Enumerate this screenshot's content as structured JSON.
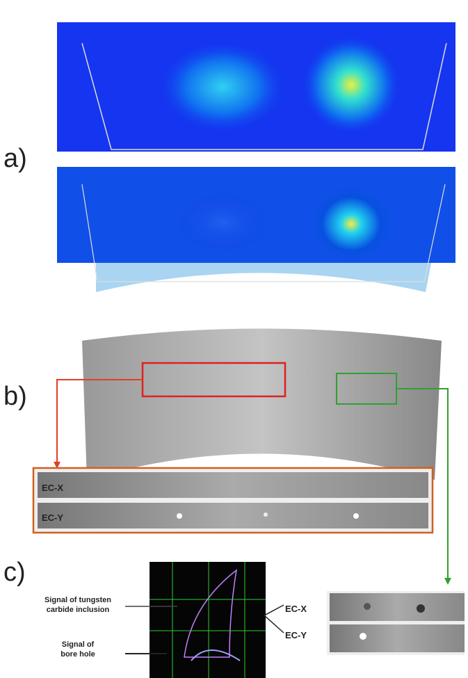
{
  "panel_a": {
    "label": "a)"
  },
  "panel_b": {
    "label": "b)",
    "strip_top": "EC-X",
    "strip_bottom": "EC-Y"
  },
  "panel_c": {
    "label": "c)",
    "signal_inclusion": "Signal of tungsten carbide inclusion",
    "signal_hole": "Signal of bore hole",
    "strip_top": "EC-X",
    "strip_bottom": "EC-Y"
  }
}
